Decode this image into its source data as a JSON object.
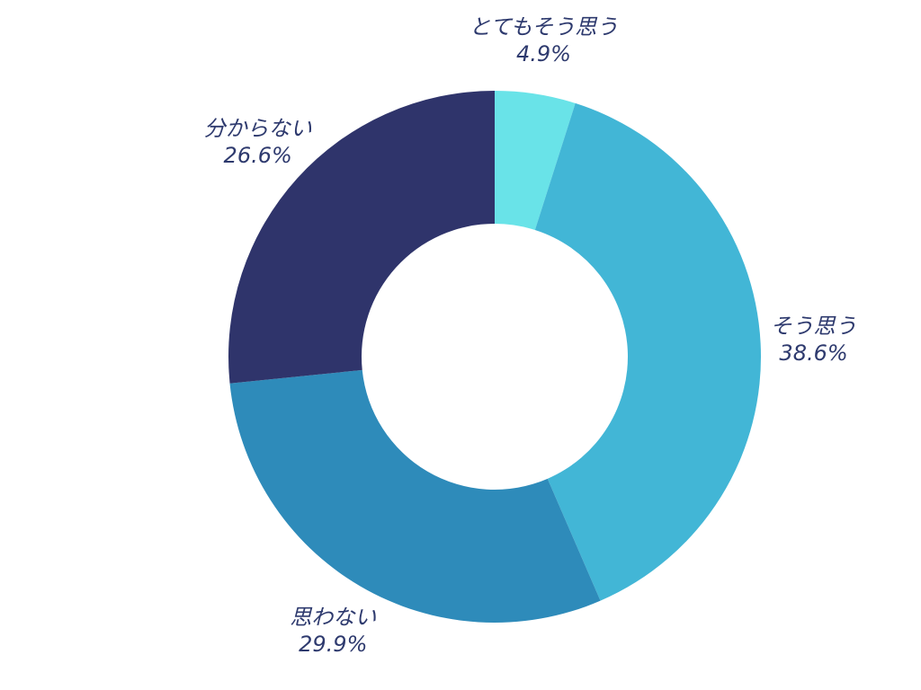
{
  "chart_data": {
    "type": "pie",
    "variant": "donut",
    "title": "",
    "slices": [
      {
        "label": "とてもそう思う",
        "value": 4.9,
        "value_label": "4.9%",
        "color": "#69e3e8"
      },
      {
        "label": "そう思う",
        "value": 38.6,
        "value_label": "38.6%",
        "color": "#42b6d6"
      },
      {
        "label": "思わない",
        "value": 29.9,
        "value_label": "29.9%",
        "color": "#2e8bba"
      },
      {
        "label": "分からない",
        "value": 26.6,
        "value_label": "26.6%",
        "color": "#2f346b"
      }
    ],
    "label_color": "#2e3a6e",
    "background": "#ffffff",
    "legend": "none"
  }
}
